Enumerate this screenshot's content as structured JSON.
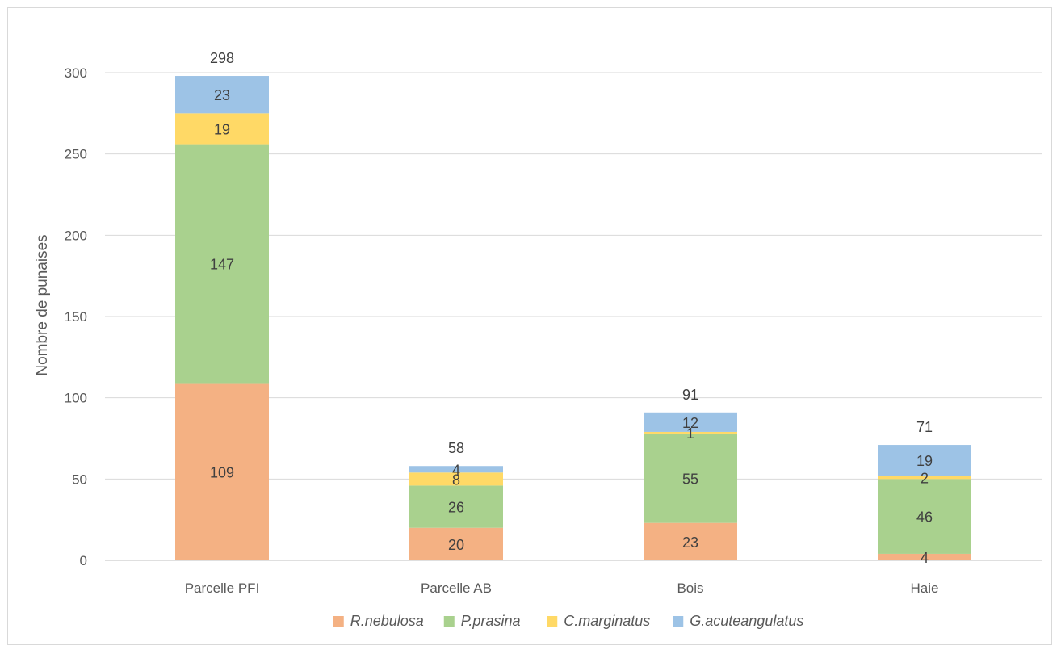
{
  "chart_data": {
    "type": "bar",
    "stacked": true,
    "categories": [
      "Parcelle PFI",
      "Parcelle AB",
      "Bois",
      "Haie"
    ],
    "series": [
      {
        "name": "R.nebulosa",
        "color": "#f4b183",
        "values": [
          109,
          20,
          23,
          4
        ]
      },
      {
        "name": "P.prasina",
        "color": "#a9d18e",
        "values": [
          147,
          26,
          55,
          46
        ]
      },
      {
        "name": "C.marginatus",
        "color": "#ffd966",
        "values": [
          19,
          8,
          1,
          2
        ]
      },
      {
        "name": "G.acuteangulatus",
        "color": "#9dc3e6",
        "values": [
          23,
          4,
          12,
          19
        ]
      }
    ],
    "totals": [
      298,
      58,
      91,
      71
    ],
    "ylabel": "Nombre de punaises",
    "ylim": [
      0,
      300
    ],
    "yticks": [
      0,
      50,
      100,
      150,
      200,
      250,
      300
    ],
    "grid": true,
    "legend_position": "bottom"
  }
}
